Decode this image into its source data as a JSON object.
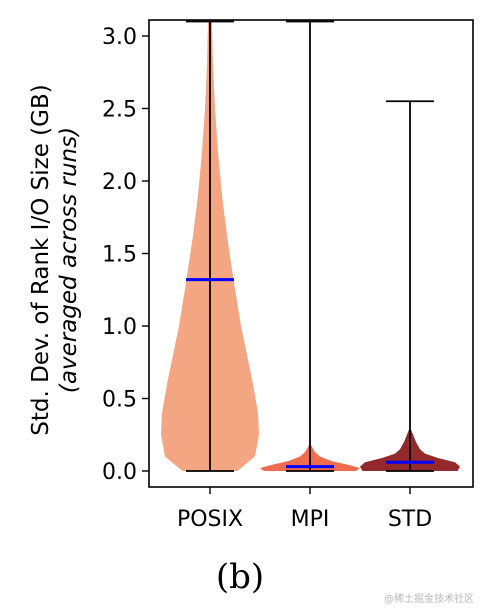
{
  "chart_data": {
    "type": "violin",
    "categories": [
      "POSIX",
      "MPI",
      "STD"
    ],
    "ylabel": "Std. Dev. of Rank I/O Size (GB)",
    "ylabel_sub": "(averaged across runs)",
    "ylim": [
      0,
      3.1
    ],
    "yticks": [
      "0.0",
      "0.5",
      "1.0",
      "1.5",
      "2.0",
      "2.5",
      "3.0"
    ],
    "series": [
      {
        "category": "POSIX",
        "color": "#f4a582",
        "min": 0.0,
        "max": 3.1,
        "mean": 1.32,
        "profile": [
          [
            0.0,
            0.55
          ],
          [
            0.1,
            0.9
          ],
          [
            0.25,
            0.98
          ],
          [
            0.4,
            0.96
          ],
          [
            0.6,
            0.86
          ],
          [
            0.8,
            0.74
          ],
          [
            1.0,
            0.62
          ],
          [
            1.3,
            0.48
          ],
          [
            1.6,
            0.35
          ],
          [
            1.9,
            0.24
          ],
          [
            2.2,
            0.16
          ],
          [
            2.5,
            0.1
          ],
          [
            2.8,
            0.06
          ],
          [
            3.1,
            0.04
          ]
        ]
      },
      {
        "category": "MPI",
        "color": "#ef6c4f",
        "min": 0.0,
        "max": 3.1,
        "mean": 0.03,
        "profile": [
          [
            0.0,
            0.92
          ],
          [
            0.02,
            1.0
          ],
          [
            0.04,
            0.8
          ],
          [
            0.07,
            0.42
          ],
          [
            0.1,
            0.2
          ],
          [
            0.13,
            0.1
          ],
          [
            0.16,
            0.05
          ],
          [
            0.19,
            0.0
          ]
        ]
      },
      {
        "category": "STD",
        "color": "#94292b",
        "min": 0.0,
        "max": 2.55,
        "mean": 0.06,
        "profile": [
          [
            0.0,
            0.95
          ],
          [
            0.03,
            1.0
          ],
          [
            0.06,
            0.9
          ],
          [
            0.09,
            0.55
          ],
          [
            0.12,
            0.3
          ],
          [
            0.15,
            0.2
          ],
          [
            0.2,
            0.12
          ],
          [
            0.26,
            0.05
          ],
          [
            0.3,
            0.0
          ]
        ]
      }
    ],
    "mean_color": "#0000ff",
    "grid": false,
    "legend": "none"
  },
  "caption": "(b)",
  "watermark": "@稀土掘金技术社区"
}
